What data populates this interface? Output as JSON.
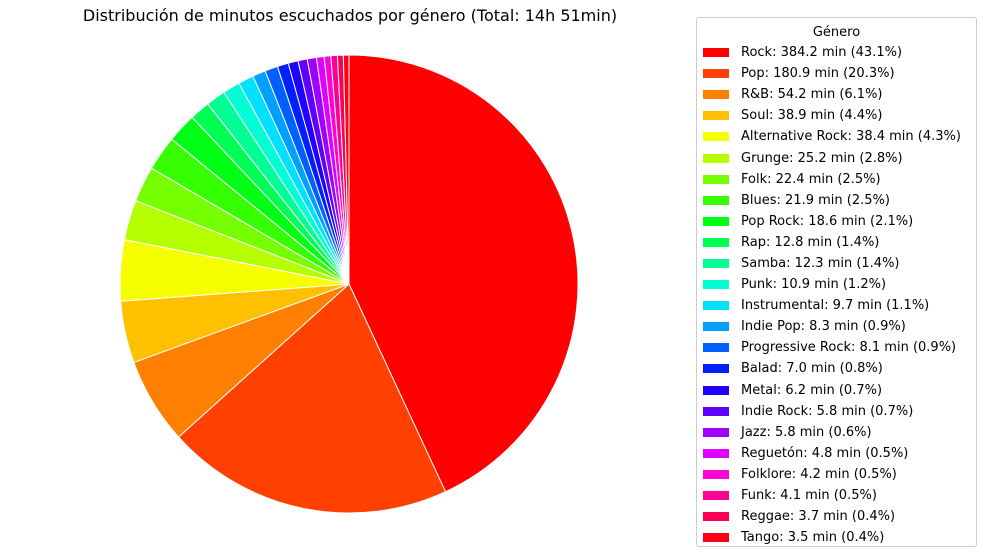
{
  "chart_data": {
    "type": "pie",
    "title": "Distribución de minutos escuchados por género (Total: 14h 51min)",
    "legend_title": "Género",
    "legend_position": "right",
    "start_angle_deg": 90,
    "direction": "clockwise",
    "edge_color": "#ffffff",
    "slices": [
      {
        "label": "Rock: 384.2 min (43.1%)",
        "name": "Rock",
        "value": 384.2,
        "percent": 43.1,
        "color": "#ff0000"
      },
      {
        "label": "Pop: 180.9 min (20.3%)",
        "name": "Pop",
        "value": 180.9,
        "percent": 20.3,
        "color": "#ff4000"
      },
      {
        "label": "R&B: 54.2 min (6.1%)",
        "name": "R&B",
        "value": 54.2,
        "percent": 6.1,
        "color": "#ff8000"
      },
      {
        "label": "Soul: 38.9 min (4.4%)",
        "name": "Soul",
        "value": 38.9,
        "percent": 4.4,
        "color": "#ffc000"
      },
      {
        "label": "Alternative Rock: 38.4 min (4.3%)",
        "name": "Alternative Rock",
        "value": 38.4,
        "percent": 4.3,
        "color": "#f5ff00"
      },
      {
        "label": "Grunge: 25.2 min (2.8%)",
        "name": "Grunge",
        "value": 25.2,
        "percent": 2.8,
        "color": "#b5ff00"
      },
      {
        "label": "Folk: 22.4 min (2.5%)",
        "name": "Folk",
        "value": 22.4,
        "percent": 2.5,
        "color": "#75ff00"
      },
      {
        "label": "Blues: 21.9 min (2.5%)",
        "name": "Blues",
        "value": 21.9,
        "percent": 2.5,
        "color": "#35ff00"
      },
      {
        "label": "Pop Rock: 18.6 min (2.1%)",
        "name": "Pop Rock",
        "value": 18.6,
        "percent": 2.1,
        "color": "#00ff15"
      },
      {
        "label": "Rap: 12.8 min (1.4%)",
        "name": "Rap",
        "value": 12.8,
        "percent": 1.4,
        "color": "#00ff55"
      },
      {
        "label": "Samba: 12.3 min (1.4%)",
        "name": "Samba",
        "value": 12.3,
        "percent": 1.4,
        "color": "#00ff95"
      },
      {
        "label": "Punk: 10.9 min (1.2%)",
        "name": "Punk",
        "value": 10.9,
        "percent": 1.2,
        "color": "#00ffd5"
      },
      {
        "label": "Instrumental: 9.7 min (1.1%)",
        "name": "Instrumental",
        "value": 9.7,
        "percent": 1.1,
        "color": "#00e0ff"
      },
      {
        "label": "Indie Pop: 8.3 min (0.9%)",
        "name": "Indie Pop",
        "value": 8.3,
        "percent": 0.9,
        "color": "#00a0ff"
      },
      {
        "label": "Progressive Rock: 8.1 min (0.9%)",
        "name": "Progressive Rock",
        "value": 8.1,
        "percent": 0.9,
        "color": "#0060ff"
      },
      {
        "label": "Balad: 7.0 min (0.8%)",
        "name": "Balad",
        "value": 7.0,
        "percent": 0.8,
        "color": "#0020ff"
      },
      {
        "label": "Metal: 6.2 min (0.7%)",
        "name": "Metal",
        "value": 6.2,
        "percent": 0.7,
        "color": "#2000ff"
      },
      {
        "label": "Indie Rock: 5.8 min (0.7%)",
        "name": "Indie Rock",
        "value": 5.8,
        "percent": 0.7,
        "color": "#6000ff"
      },
      {
        "label": "Jazz: 5.8 min (0.6%)",
        "name": "Jazz",
        "value": 5.8,
        "percent": 0.6,
        "color": "#a000ff"
      },
      {
        "label": "Reguetón: 4.8 min (0.5%)",
        "name": "Reguetón",
        "value": 4.8,
        "percent": 0.5,
        "color": "#e000ff"
      },
      {
        "label": "Folklore: 4.2 min (0.5%)",
        "name": "Folklore",
        "value": 4.2,
        "percent": 0.5,
        "color": "#ff00d5"
      },
      {
        "label": "Funk: 4.1 min (0.5%)",
        "name": "Funk",
        "value": 4.1,
        "percent": 0.5,
        "color": "#ff0095"
      },
      {
        "label": "Reggae: 3.7 min (0.4%)",
        "name": "Reggae",
        "value": 3.7,
        "percent": 0.4,
        "color": "#ff0055"
      },
      {
        "label": "Tango: 3.5 min (0.4%)",
        "name": "Tango",
        "value": 3.5,
        "percent": 0.4,
        "color": "#ff0015"
      }
    ]
  }
}
